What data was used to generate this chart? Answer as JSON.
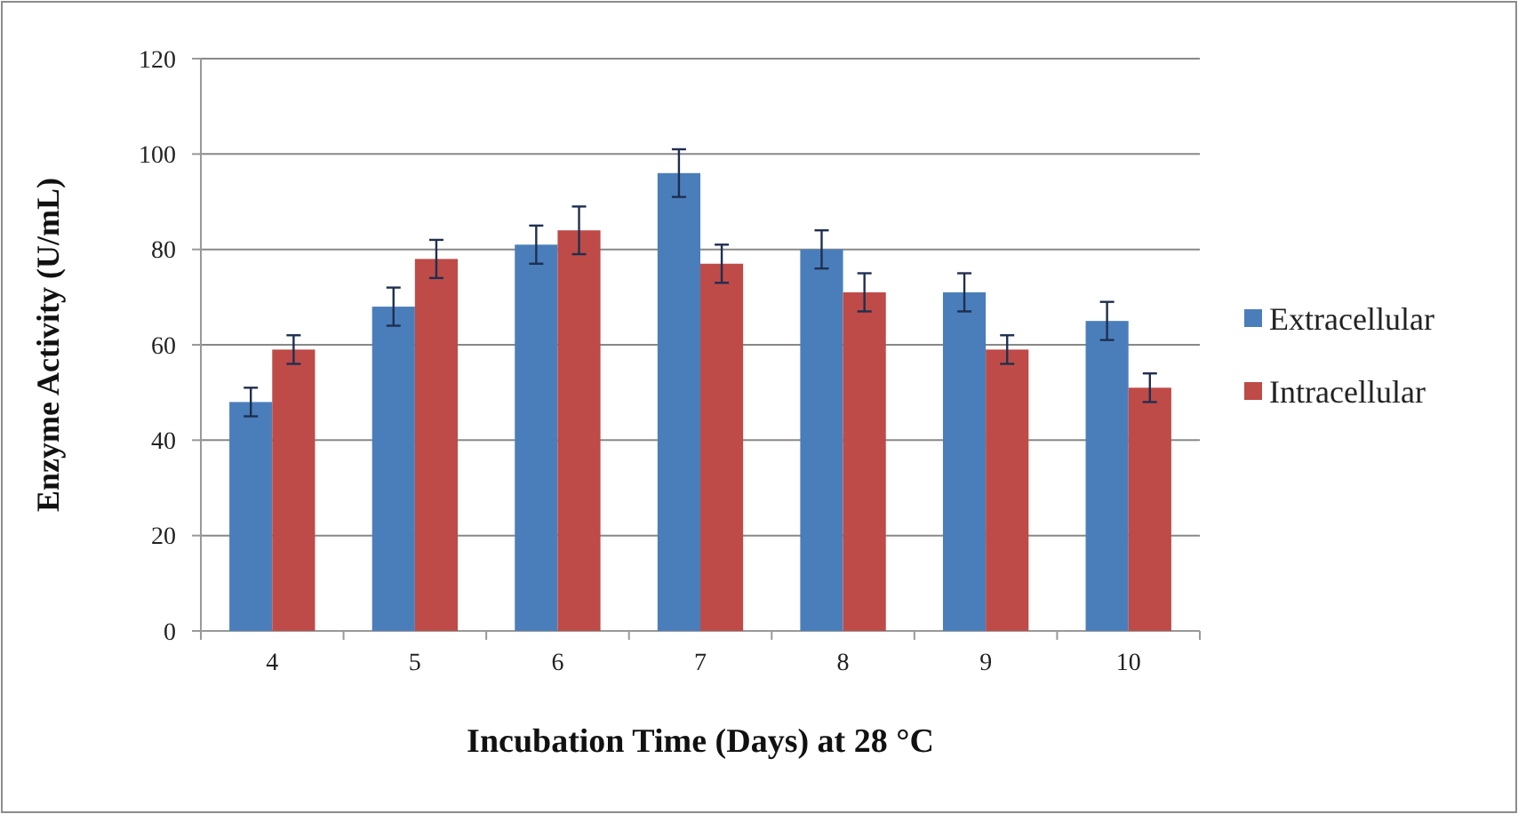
{
  "chart_data": {
    "type": "bar",
    "xlabel": "Incubation Time (Days) at 28 °C",
    "ylabel": "Enzyme Activity (U/mL)",
    "categories": [
      "4",
      "5",
      "6",
      "7",
      "8",
      "9",
      "10"
    ],
    "series": [
      {
        "name": "Extracellular",
        "color": "#4a7ebb",
        "values": [
          48,
          68,
          81,
          96,
          80,
          71,
          65
        ],
        "errors": [
          3,
          4,
          4,
          5,
          4,
          4,
          4
        ]
      },
      {
        "name": "Intracellular",
        "color": "#be4b48",
        "values": [
          59,
          78,
          84,
          77,
          71,
          59,
          51
        ],
        "errors": [
          3,
          4,
          5,
          4,
          4,
          3,
          3
        ]
      }
    ],
    "ylim": [
      0,
      120
    ],
    "yticks": [
      0,
      20,
      40,
      60,
      80,
      100,
      120
    ],
    "grid": "y",
    "legend": "right"
  }
}
